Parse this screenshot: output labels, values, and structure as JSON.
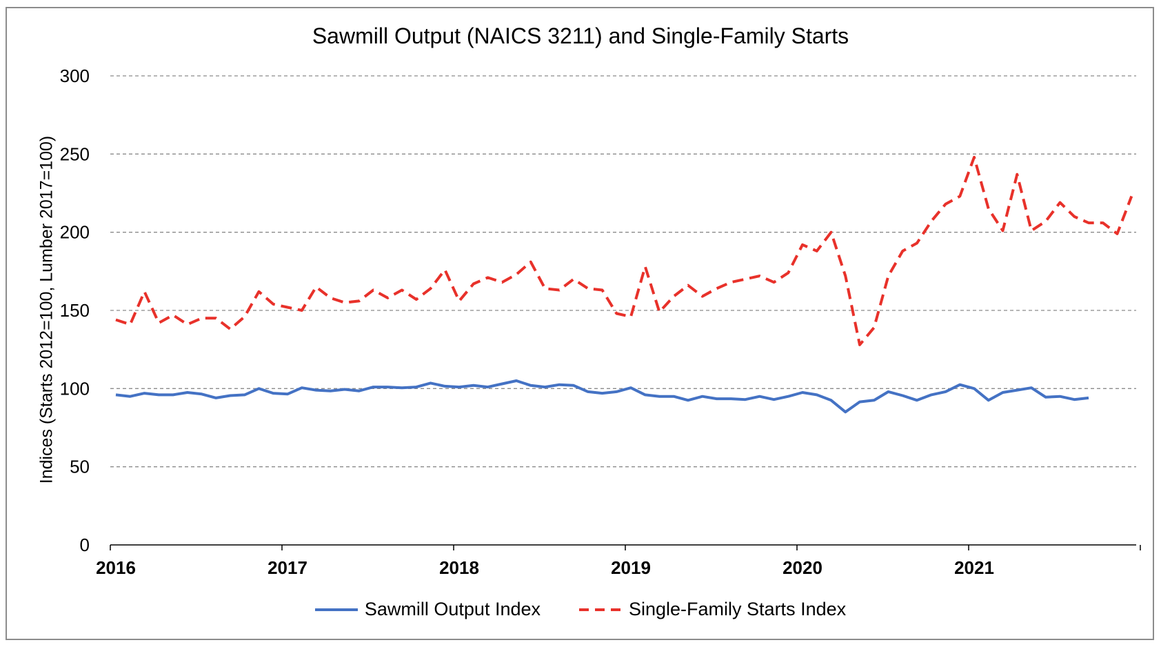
{
  "chart_data": {
    "type": "line",
    "title": "Sawmill Output (NAICS 3211) and Single-Family Starts",
    "ylabel": "Indices (Starts 2012=100, Lumber 2017=100)",
    "xlabel": "",
    "ylim": [
      0,
      300
    ],
    "yticks": [
      0,
      50,
      100,
      150,
      200,
      250,
      300
    ],
    "x_tick_labels": [
      "2016",
      "2017",
      "2018",
      "2019",
      "2020",
      "2021"
    ],
    "x_start": "2016-01",
    "grid": "horizontal dashed",
    "legend_position": "bottom",
    "series": [
      {
        "name": "Sawmill Output Index",
        "color": "#4472C4",
        "style": "solid",
        "values": [
          96,
          95,
          97,
          96,
          96,
          97.5,
          96.5,
          94,
          95.5,
          96,
          100,
          97,
          96.5,
          100.5,
          99,
          98.5,
          99.5,
          98.5,
          101,
          101,
          100.5,
          101,
          103.5,
          101.5,
          101,
          102,
          101,
          103,
          105,
          102,
          101,
          102.5,
          102,
          98,
          97,
          98,
          100.5,
          96,
          95,
          95,
          92.5,
          95,
          93.5,
          93.5,
          93,
          95,
          93,
          95,
          97.5,
          96,
          92.5,
          85,
          91.5,
          92.5,
          98,
          95.5,
          92.5,
          96,
          98,
          102.5,
          100,
          92.5,
          97.5,
          99,
          100.5,
          94.5,
          95,
          93,
          94
        ]
      },
      {
        "name": "Single-Family Starts Index",
        "color": "#E8312A",
        "style": "dashed",
        "values": [
          144,
          141,
          162,
          142,
          147,
          141,
          145,
          145,
          138,
          146,
          162,
          154,
          152,
          150,
          165,
          158,
          155,
          156,
          163,
          158,
          163,
          157,
          164,
          176,
          156,
          167,
          171,
          168,
          173,
          181,
          164,
          163,
          170,
          164,
          163,
          148,
          146,
          178,
          149,
          159,
          166,
          159,
          164,
          168,
          170,
          172,
          168,
          174,
          192,
          188,
          200,
          172,
          128,
          139,
          172,
          188,
          193,
          207,
          218,
          223,
          248,
          215,
          201,
          237,
          201,
          207,
          219,
          210,
          206,
          206,
          199,
          223
        ]
      }
    ]
  }
}
